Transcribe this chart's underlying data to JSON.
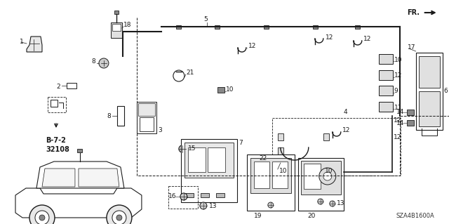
{
  "bg": "#ffffff",
  "lc": "#1a1a1a",
  "fig_w": 6.4,
  "fig_h": 3.19,
  "dpi": 100,
  "subtitle": "SZA4B1600A",
  "ref_code": "B-7-2\n32108"
}
